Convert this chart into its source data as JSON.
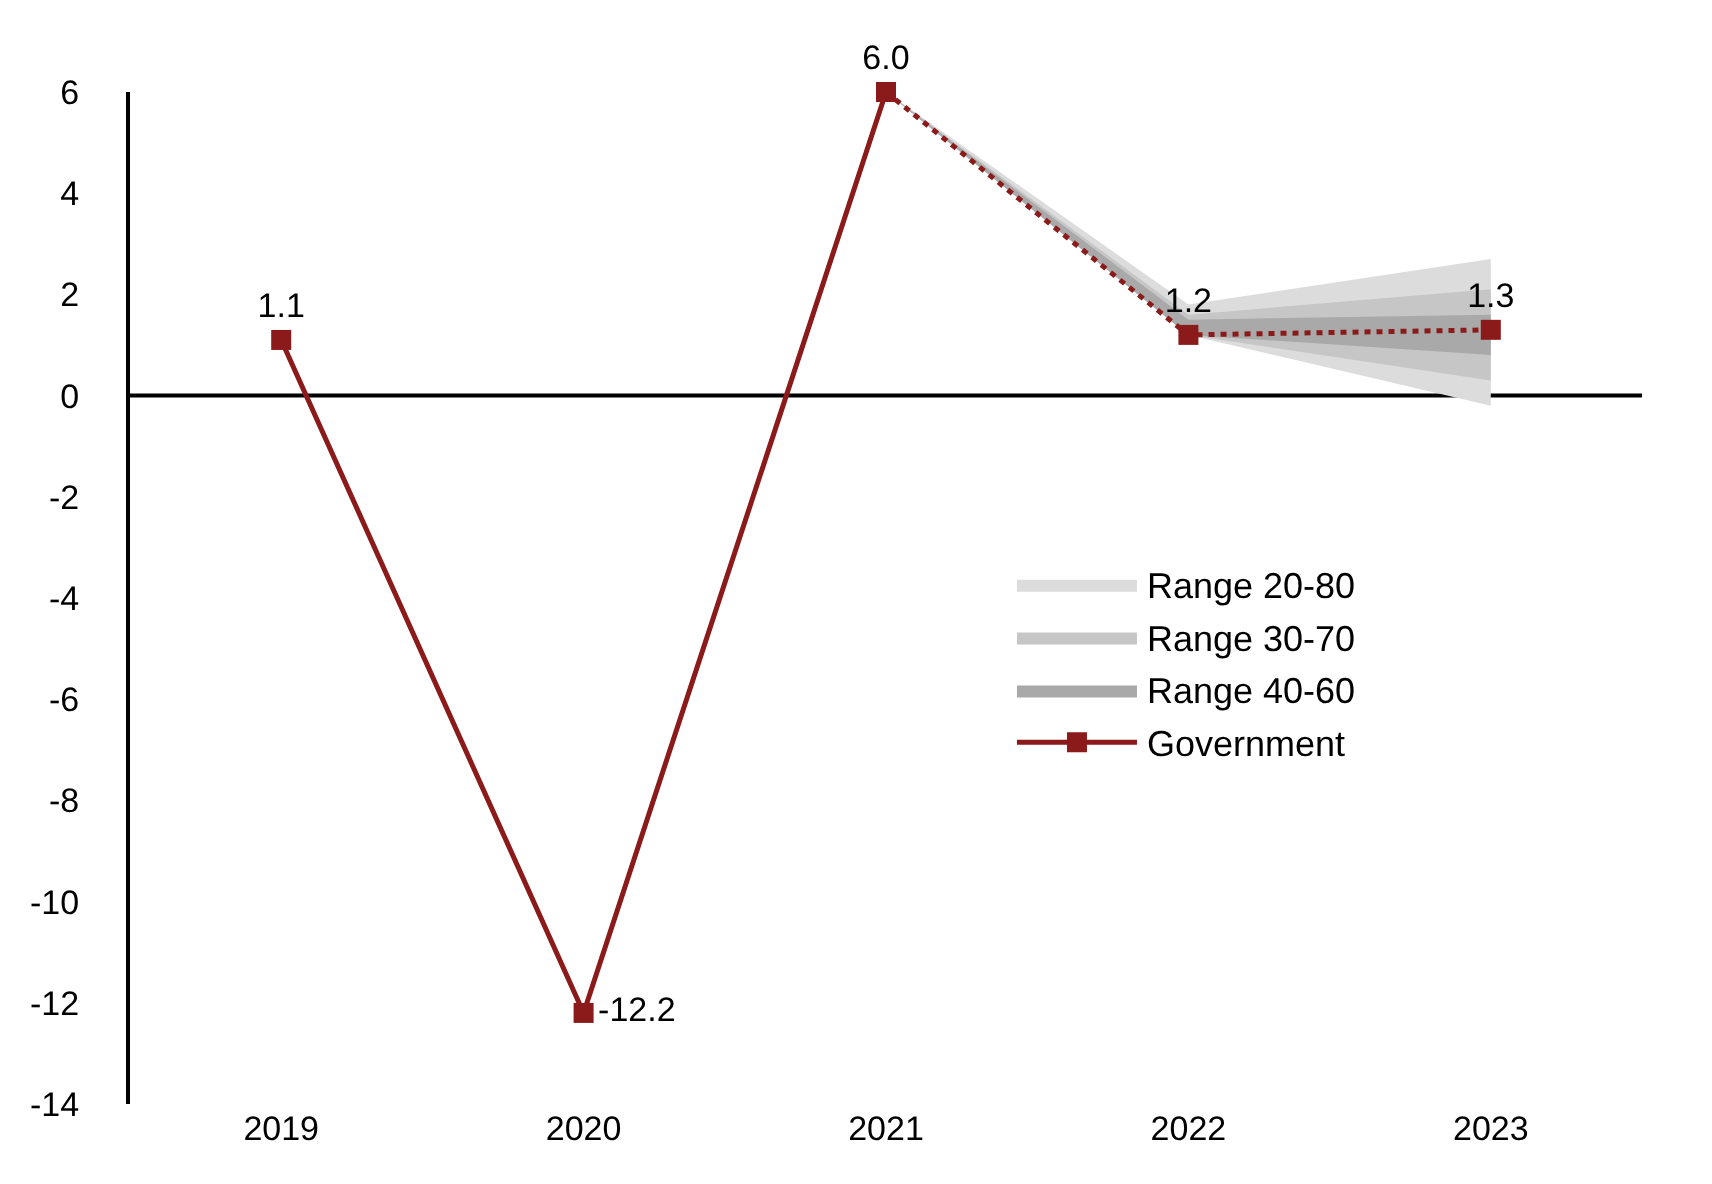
{
  "chart_data": {
    "type": "line",
    "categories": [
      "2019",
      "2020",
      "2021",
      "2022",
      "2023"
    ],
    "series": [
      {
        "name": "Range 20-80",
        "type": "area",
        "color": "#dcdcdc",
        "values": [
          null,
          null,
          null,
          null,
          null
        ],
        "lower": [
          null,
          null,
          6.0,
          1.2,
          -0.2
        ],
        "upper": [
          null,
          null,
          6.0,
          1.8,
          2.7
        ]
      },
      {
        "name": "Range 30-70",
        "type": "area",
        "color": "#c6c6c6",
        "values": [
          null,
          null,
          null,
          null,
          null
        ],
        "lower": [
          null,
          null,
          6.0,
          1.2,
          0.3
        ],
        "upper": [
          null,
          null,
          6.0,
          1.6,
          2.1
        ]
      },
      {
        "name": "Range 40-60",
        "type": "area",
        "color": "#a9a9a9",
        "values": [
          null,
          null,
          null,
          null,
          null
        ],
        "lower": [
          null,
          null,
          6.0,
          1.2,
          0.8
        ],
        "upper": [
          null,
          null,
          6.0,
          1.5,
          1.6
        ]
      },
      {
        "name": "Government",
        "color": "#8b1a1a",
        "line_style": "solid",
        "values": [
          1.1,
          -12.2,
          6.0,
          null,
          null
        ],
        "value_labels": [
          "1.1",
          "-12.2",
          "6.0",
          null,
          null
        ]
      },
      {
        "color": "#8b1a1a",
        "line_style": "dotted",
        "values": [
          null,
          null,
          6.0,
          1.2,
          1.3
        ],
        "value_labels": [
          null,
          null,
          null,
          "1.2",
          "1.3"
        ]
      }
    ],
    "ylim": [
      -14,
      6
    ],
    "yticks": [
      -14,
      -12,
      -10,
      -8,
      -6,
      -4,
      -2,
      0,
      2,
      4,
      6
    ],
    "ref_lines": [
      {
        "axis": "y",
        "value": 0,
        "color": "#000000"
      }
    ],
    "marker": "square",
    "grid": false,
    "legend": "right"
  }
}
